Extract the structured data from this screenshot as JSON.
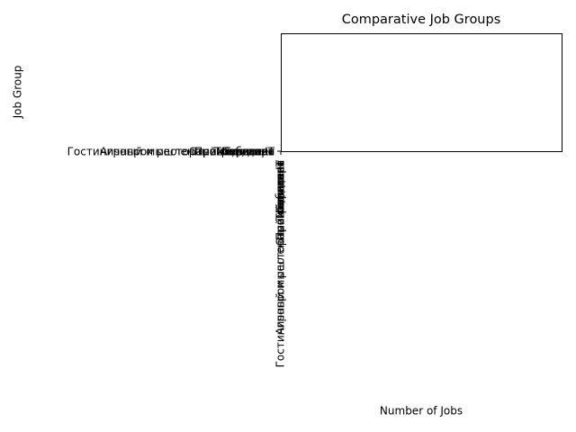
{
  "chart_data": {
    "type": "barh",
    "title": "Comparative Job Groups",
    "xlabel": "Number of Jobs",
    "ylabel": "Job Group",
    "categories": [
      "Гостиничный и ресторанный бизнес",
      "Агропромышленный комплекс",
      "Производство",
      "Медицина",
      "IT",
      "Транспорт",
      "Строительство",
      "Торговля"
    ]
  }
}
